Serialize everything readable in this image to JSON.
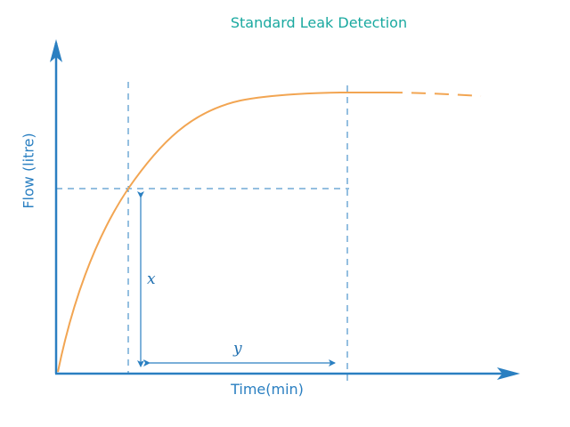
{
  "title": "Standard Leak Detection",
  "xlabel": "Time(min)",
  "ylabel": "Flow (litre)",
  "annotations": {
    "x": "x",
    "y": "y"
  },
  "colors": {
    "curve": "#f2a552",
    "axis": "#2a7fc1",
    "guide": "#2a7fc1",
    "title": "#1aa9a0"
  }
}
